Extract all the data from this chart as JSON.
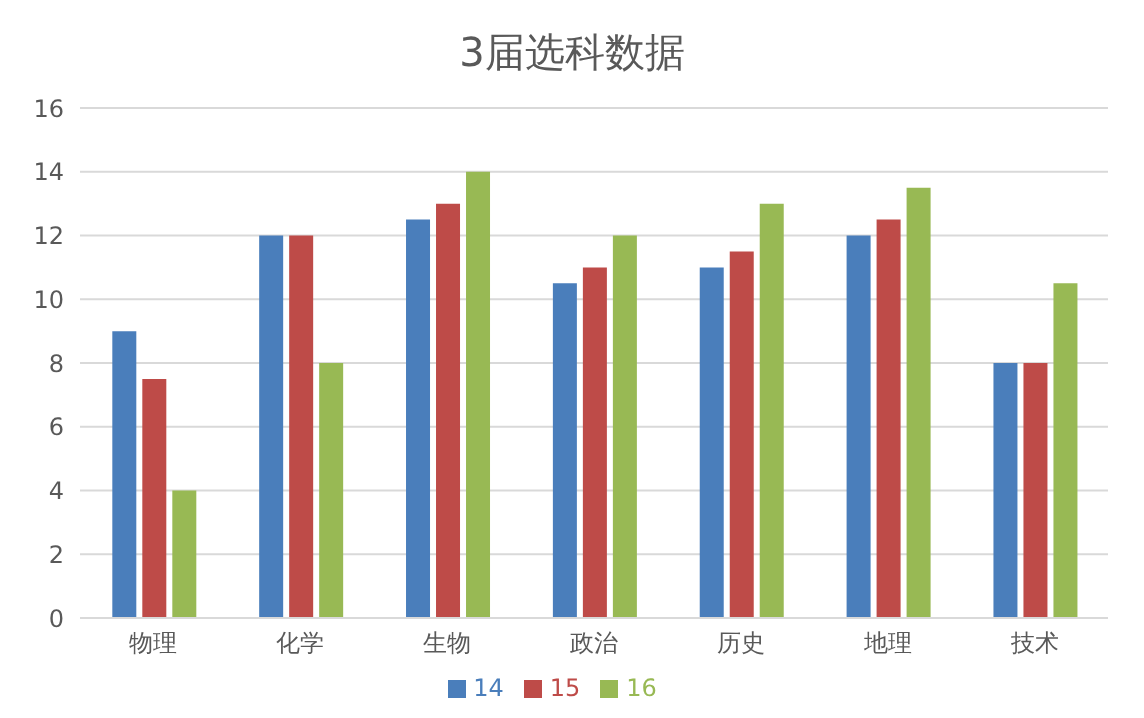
{
  "chart_data": {
    "type": "bar",
    "title": "3届选科数据",
    "categories": [
      "物理",
      "化学",
      "生物",
      "政治",
      "历史",
      "地理",
      "技术"
    ],
    "series": [
      {
        "name": "14",
        "color": "#4a7ebb",
        "values": [
          9,
          12,
          12.5,
          10.5,
          11,
          12,
          8
        ]
      },
      {
        "name": "15",
        "color": "#be4b48",
        "values": [
          7.5,
          12,
          13,
          11,
          11.5,
          12.5,
          8
        ]
      },
      {
        "name": "16",
        "color": "#98b954",
        "values": [
          4,
          8,
          14,
          12,
          13,
          13.5,
          10.5
        ]
      }
    ],
    "ylim": [
      0,
      16
    ],
    "yticks": [
      0,
      2,
      4,
      6,
      8,
      10,
      12,
      14,
      16
    ],
    "grid": "y",
    "legend": "bottom"
  }
}
